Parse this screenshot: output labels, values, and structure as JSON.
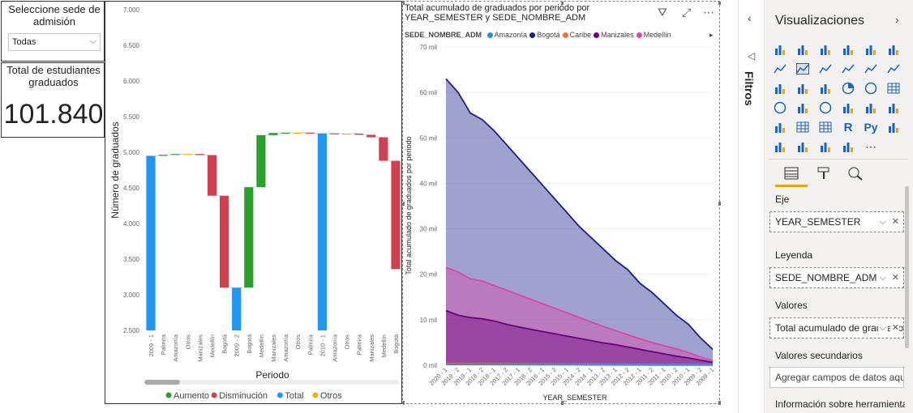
{
  "slicer": {
    "title": "Seleccione sede de admisión",
    "value": "Todas"
  },
  "card": {
    "title": "Total de estudiantes graduados",
    "value": "101.840"
  },
  "waterfall": {
    "y_ticks": [
      "7.000",
      "6.500",
      "6.000",
      "5.500",
      "5.000",
      "4.500",
      "4.000",
      "3.500",
      "3.000",
      "2.500"
    ],
    "y_label": "Número de graduados",
    "x_label": "Periodo",
    "legend": [
      {
        "label": "Aumento",
        "color": "#2ca02c"
      },
      {
        "label": "Disminución",
        "color": "#d1404f"
      },
      {
        "label": "Total",
        "color": "#2196f3"
      },
      {
        "label": "Otros",
        "color": "#e8b600"
      }
    ]
  },
  "area": {
    "title": "Total acumulado de graduados por periodo por YEAR_SEMESTER y SEDE_NOMBRE_ADM",
    "legend_title": "SEDE_NOMBRE_ADM",
    "y_ticks": [
      "70 mil",
      "60 mil",
      "50 mil",
      "40 mil",
      "30 mil",
      "20 mil",
      "10 mil",
      "0 mil"
    ],
    "y_label": "Total acumulado de graduados por periodo",
    "x_label": "YEAR_SEMESTER"
  },
  "filters": {
    "label": "Filtros"
  },
  "viz_pane": {
    "title": "Visualizaciones",
    "wells": [
      {
        "label": "Eje",
        "field": "YEAR_SEMESTER"
      },
      {
        "label": "Leyenda",
        "field": "SEDE_NOMBRE_ADM"
      },
      {
        "label": "Valores",
        "field": "Total acumulado de graduados por periodo"
      },
      {
        "label": "Valores secundarios",
        "field": "Agregar campos de datos aquí"
      },
      {
        "label": "Información sobre herramientas"
      }
    ]
  },
  "chart_data": [
    {
      "type": "bar",
      "subtype": "waterfall",
      "ylabel": "Número de graduados",
      "xlabel": "Periodo",
      "ylim": [
        2500,
        7000
      ],
      "legend": [
        "Aumento",
        "Disminución",
        "Total",
        "Otros"
      ],
      "bars": [
        {
          "label": "2009 - 1",
          "kind": "total",
          "start": 2500,
          "end": 4950
        },
        {
          "label": "Palmira",
          "kind": "increase",
          "start": 4950,
          "end": 4965
        },
        {
          "label": "Amazonía",
          "kind": "increase",
          "start": 4965,
          "end": 4975
        },
        {
          "label": "Otros",
          "kind": "other",
          "start": 4975,
          "end": 4975
        },
        {
          "label": "Manizales",
          "kind": "decrease",
          "start": 4975,
          "end": 4960
        },
        {
          "label": "Medellín",
          "kind": "decrease",
          "start": 4960,
          "end": 4390
        },
        {
          "label": "Bogotá",
          "kind": "decrease",
          "start": 4390,
          "end": 3100
        },
        {
          "label": "2009 - 2",
          "kind": "total",
          "start": 2500,
          "end": 3100
        },
        {
          "label": "Bogotá",
          "kind": "increase",
          "start": 3100,
          "end": 4510
        },
        {
          "label": "Medellín",
          "kind": "increase",
          "start": 4510,
          "end": 5240
        },
        {
          "label": "Manizales",
          "kind": "increase",
          "start": 5240,
          "end": 5270
        },
        {
          "label": "Amazonía",
          "kind": "increase",
          "start": 5270,
          "end": 5275
        },
        {
          "label": "Otros",
          "kind": "other",
          "start": 5275,
          "end": 5275
        },
        {
          "label": "Palmira",
          "kind": "decrease",
          "start": 5275,
          "end": 5265
        },
        {
          "label": "2010 - 1",
          "kind": "total",
          "start": 2500,
          "end": 5265
        },
        {
          "label": "Amazonía",
          "kind": "decrease",
          "start": 5265,
          "end": 5262
        },
        {
          "label": "Otros",
          "kind": "other",
          "start": 5262,
          "end": 5262
        },
        {
          "label": "Palmira",
          "kind": "decrease",
          "start": 5262,
          "end": 5245
        },
        {
          "label": "Manizales",
          "kind": "decrease",
          "start": 5245,
          "end": 5210
        },
        {
          "label": "Medellín",
          "kind": "decrease",
          "start": 5210,
          "end": 4880
        },
        {
          "label": "Bogotá",
          "kind": "decrease",
          "start": 4880,
          "end": 3360
        }
      ]
    },
    {
      "type": "area",
      "title": "Total acumulado de graduados por periodo por YEAR_SEMESTER y SEDE_NOMBRE_ADM",
      "xlabel": "YEAR_SEMESTER",
      "ylabel": "Total acumulado de graduados por periodo",
      "ylim": [
        0,
        70000
      ],
      "x": [
        "2020 - 1",
        "2019 - 2",
        "2019 - 1",
        "2018 - 2",
        "2018 - 1",
        "2017 - 2",
        "2017 - 1",
        "2016 - 2",
        "2016 - 1",
        "2015 - 2",
        "2015 - 1",
        "2014 - 2",
        "2014 - 1",
        "2013 - 2",
        "2013 - 1",
        "2012 - 2",
        "2012 - 1",
        "2011 - 2",
        "2011 - 1",
        "2010 - 2",
        "2010 - 1",
        "2009 - 2",
        "2009 - 1"
      ],
      "series": [
        {
          "name": "Amazonía",
          "color": "#1f8fe8",
          "values": [
            200,
            190,
            180,
            170,
            160,
            150,
            140,
            130,
            120,
            110,
            100,
            90,
            80,
            70,
            60,
            50,
            45,
            40,
            35,
            30,
            25,
            20,
            15
          ]
        },
        {
          "name": "Bogotá",
          "color": "#1b1f8c",
          "values": [
            63000,
            60000,
            55500,
            54000,
            51500,
            48500,
            45500,
            42500,
            39500,
            36500,
            33500,
            30500,
            28000,
            25500,
            23000,
            21000,
            18000,
            16000,
            13500,
            11000,
            9000,
            6000,
            3500
          ]
        },
        {
          "name": "Caribe",
          "color": "#e8743b",
          "values": [
            350,
            340,
            330,
            320,
            310,
            300,
            290,
            280,
            270,
            260,
            250,
            240,
            230,
            220,
            210,
            200,
            190,
            180,
            170,
            160,
            150,
            140,
            130
          ]
        },
        {
          "name": "Manizales",
          "color": "#6b007b",
          "values": [
            12000,
            11000,
            10500,
            10200,
            9700,
            9000,
            8400,
            7900,
            7400,
            6900,
            6400,
            5900,
            5400,
            4900,
            4500,
            4000,
            3500,
            3000,
            2500,
            2000,
            1600,
            1100,
            600
          ]
        },
        {
          "name": "Medellín",
          "color": "#e044a7",
          "values": [
            21500,
            20500,
            19000,
            18500,
            17500,
            16500,
            15500,
            14500,
            13500,
            12500,
            11500,
            10500,
            9500,
            8500,
            7600,
            6700,
            5800,
            5000,
            4300,
            3600,
            2800,
            1800,
            1000
          ]
        }
      ]
    }
  ]
}
